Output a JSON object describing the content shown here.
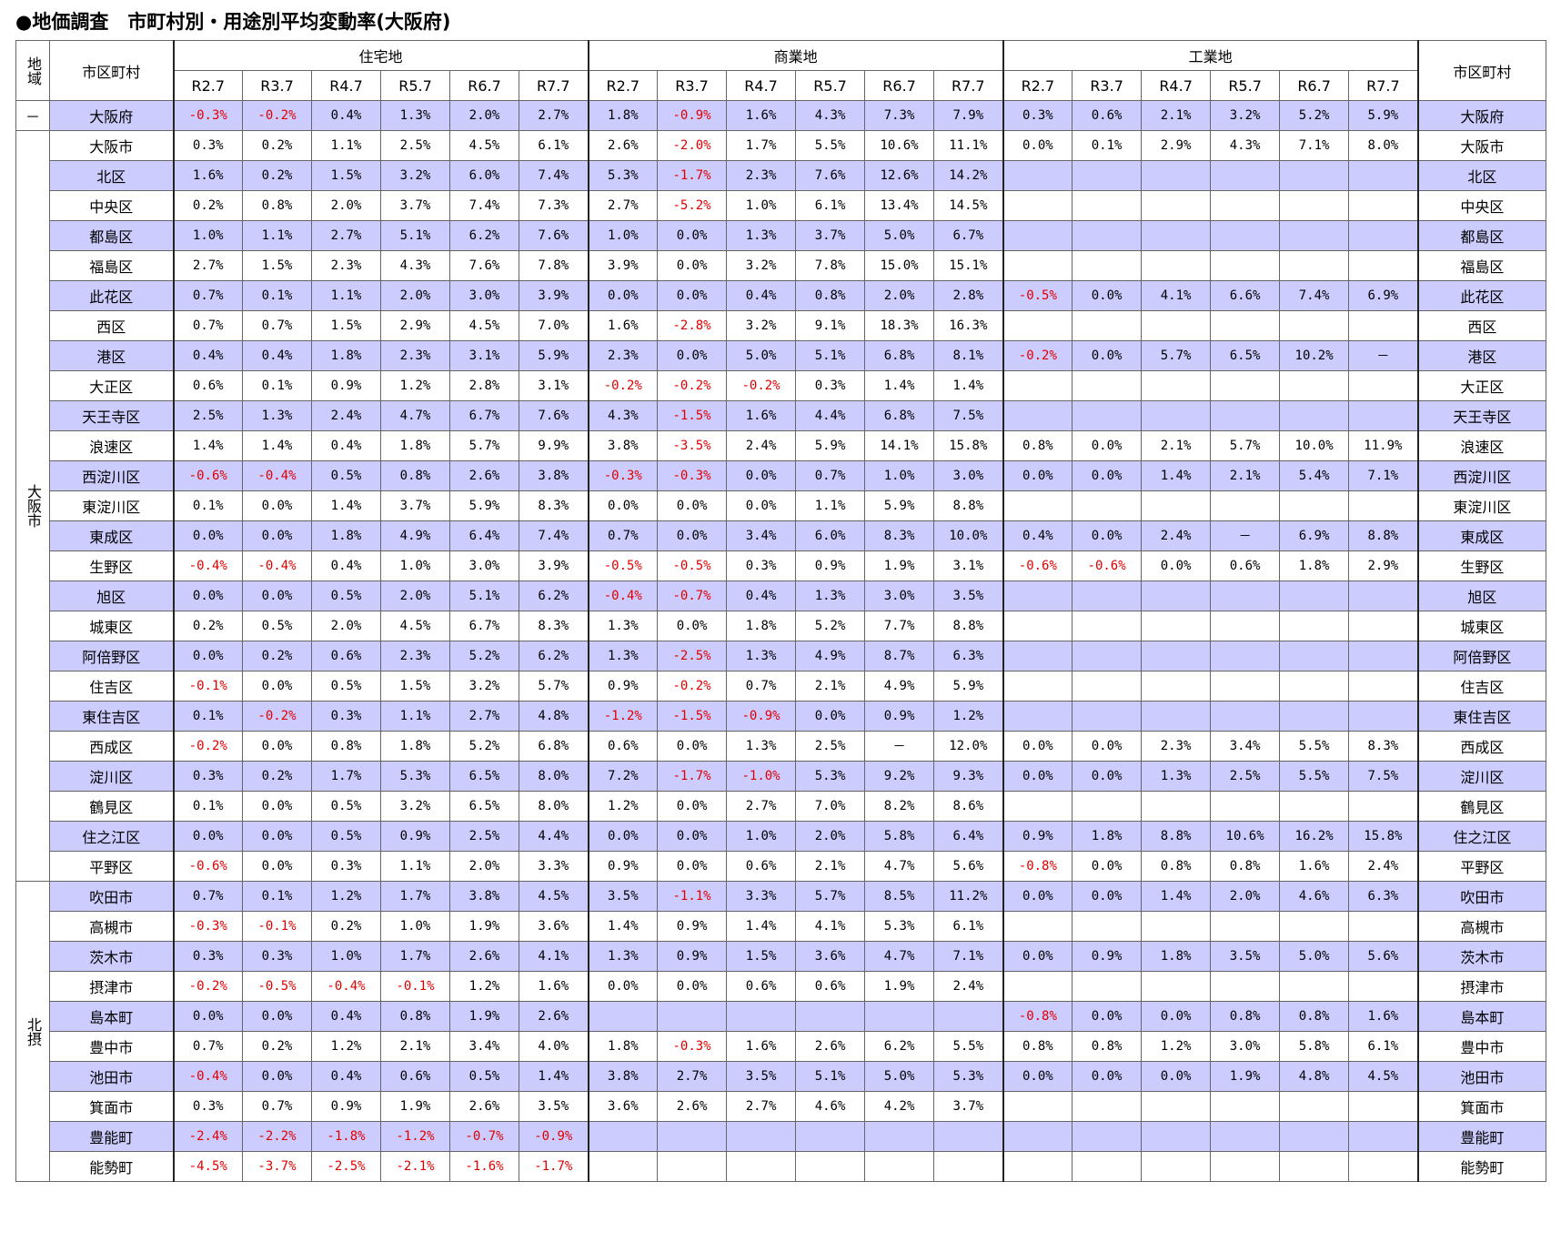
{
  "title": "●地価調査　市町村別・用途別平均変動率(大阪府)",
  "table": {
    "headers": {
      "region": "地域",
      "name": "市区町村",
      "groups": [
        "住宅地",
        "商業地",
        "工業地"
      ],
      "periods": [
        "R2.7",
        "R3.7",
        "R4.7",
        "R5.7",
        "R6.7",
        "R7.7"
      ]
    },
    "regions": [
      {
        "label": "－",
        "rows": [
          {
            "name": "大阪府",
            "shaded": true,
            "values": [
              "-0.3%",
              "-0.2%",
              "0.4%",
              "1.3%",
              "2.0%",
              "2.7%",
              "1.8%",
              "-0.9%",
              "1.6%",
              "4.3%",
              "7.3%",
              "7.9%",
              "0.3%",
              "0.6%",
              "2.1%",
              "3.2%",
              "5.2%",
              "5.9%"
            ]
          }
        ]
      },
      {
        "label": "大阪市",
        "rows": [
          {
            "name": "大阪市",
            "shaded": false,
            "values": [
              "0.3%",
              "0.2%",
              "1.1%",
              "2.5%",
              "4.5%",
              "6.1%",
              "2.6%",
              "-2.0%",
              "1.7%",
              "5.5%",
              "10.6%",
              "11.1%",
              "0.0%",
              "0.1%",
              "2.9%",
              "4.3%",
              "7.1%",
              "8.0%"
            ]
          },
          {
            "name": "北区",
            "shaded": true,
            "values": [
              "1.6%",
              "0.2%",
              "1.5%",
              "3.2%",
              "6.0%",
              "7.4%",
              "5.3%",
              "-1.7%",
              "2.3%",
              "7.6%",
              "12.6%",
              "14.2%",
              null,
              null,
              null,
              null,
              null,
              null
            ]
          },
          {
            "name": "中央区",
            "shaded": false,
            "values": [
              "0.2%",
              "0.8%",
              "2.0%",
              "3.7%",
              "7.4%",
              "7.3%",
              "2.7%",
              "-5.2%",
              "1.0%",
              "6.1%",
              "13.4%",
              "14.5%",
              null,
              null,
              null,
              null,
              null,
              null
            ]
          },
          {
            "name": "都島区",
            "shaded": true,
            "values": [
              "1.0%",
              "1.1%",
              "2.7%",
              "5.1%",
              "6.2%",
              "7.6%",
              "1.0%",
              "0.0%",
              "1.3%",
              "3.7%",
              "5.0%",
              "6.7%",
              null,
              null,
              null,
              null,
              null,
              null
            ]
          },
          {
            "name": "福島区",
            "shaded": false,
            "values": [
              "2.7%",
              "1.5%",
              "2.3%",
              "4.3%",
              "7.6%",
              "7.8%",
              "3.9%",
              "0.0%",
              "3.2%",
              "7.8%",
              "15.0%",
              "15.1%",
              null,
              null,
              null,
              null,
              null,
              null
            ]
          },
          {
            "name": "此花区",
            "shaded": true,
            "values": [
              "0.7%",
              "0.1%",
              "1.1%",
              "2.0%",
              "3.0%",
              "3.9%",
              "0.0%",
              "0.0%",
              "0.4%",
              "0.8%",
              "2.0%",
              "2.8%",
              "-0.5%",
              "0.0%",
              "4.1%",
              "6.6%",
              "7.4%",
              "6.9%"
            ]
          },
          {
            "name": "西区",
            "shaded": false,
            "values": [
              "0.7%",
              "0.7%",
              "1.5%",
              "2.9%",
              "4.5%",
              "7.0%",
              "1.6%",
              "-2.8%",
              "3.2%",
              "9.1%",
              "18.3%",
              "16.3%",
              null,
              null,
              null,
              null,
              null,
              null
            ]
          },
          {
            "name": "港区",
            "shaded": true,
            "values": [
              "0.4%",
              "0.4%",
              "1.8%",
              "2.3%",
              "3.1%",
              "5.9%",
              "2.3%",
              "0.0%",
              "5.0%",
              "5.1%",
              "6.8%",
              "8.1%",
              "-0.2%",
              "0.0%",
              "5.7%",
              "6.5%",
              "10.2%",
              "－"
            ]
          },
          {
            "name": "大正区",
            "shaded": false,
            "values": [
              "0.6%",
              "0.1%",
              "0.9%",
              "1.2%",
              "2.8%",
              "3.1%",
              "-0.2%",
              "-0.2%",
              "-0.2%",
              "0.3%",
              "1.4%",
              "1.4%",
              null,
              null,
              null,
              null,
              null,
              null
            ]
          },
          {
            "name": "天王寺区",
            "shaded": true,
            "values": [
              "2.5%",
              "1.3%",
              "2.4%",
              "4.7%",
              "6.7%",
              "7.6%",
              "4.3%",
              "-1.5%",
              "1.6%",
              "4.4%",
              "6.8%",
              "7.5%",
              null,
              null,
              null,
              null,
              null,
              null
            ]
          },
          {
            "name": "浪速区",
            "shaded": false,
            "values": [
              "1.4%",
              "1.4%",
              "0.4%",
              "1.8%",
              "5.7%",
              "9.9%",
              "3.8%",
              "-3.5%",
              "2.4%",
              "5.9%",
              "14.1%",
              "15.8%",
              "0.8%",
              "0.0%",
              "2.1%",
              "5.7%",
              "10.0%",
              "11.9%"
            ]
          },
          {
            "name": "西淀川区",
            "shaded": true,
            "values": [
              "-0.6%",
              "-0.4%",
              "0.5%",
              "0.8%",
              "2.6%",
              "3.8%",
              "-0.3%",
              "-0.3%",
              "0.0%",
              "0.7%",
              "1.0%",
              "3.0%",
              "0.0%",
              "0.0%",
              "1.4%",
              "2.1%",
              "5.4%",
              "7.1%"
            ]
          },
          {
            "name": "東淀川区",
            "shaded": false,
            "values": [
              "0.1%",
              "0.0%",
              "1.4%",
              "3.7%",
              "5.9%",
              "8.3%",
              "0.0%",
              "0.0%",
              "0.0%",
              "1.1%",
              "5.9%",
              "8.8%",
              null,
              null,
              null,
              null,
              null,
              null
            ]
          },
          {
            "name": "東成区",
            "shaded": true,
            "values": [
              "0.0%",
              "0.0%",
              "1.8%",
              "4.9%",
              "6.4%",
              "7.4%",
              "0.7%",
              "0.0%",
              "3.4%",
              "6.0%",
              "8.3%",
              "10.0%",
              "0.4%",
              "0.0%",
              "2.4%",
              "－",
              "6.9%",
              "8.8%"
            ]
          },
          {
            "name": "生野区",
            "shaded": false,
            "values": [
              "-0.4%",
              "-0.4%",
              "0.4%",
              "1.0%",
              "3.0%",
              "3.9%",
              "-0.5%",
              "-0.5%",
              "0.3%",
              "0.9%",
              "1.9%",
              "3.1%",
              "-0.6%",
              "-0.6%",
              "0.0%",
              "0.6%",
              "1.8%",
              "2.9%"
            ]
          },
          {
            "name": "旭区",
            "shaded": true,
            "values": [
              "0.0%",
              "0.0%",
              "0.5%",
              "2.0%",
              "5.1%",
              "6.2%",
              "-0.4%",
              "-0.7%",
              "0.4%",
              "1.3%",
              "3.0%",
              "3.5%",
              null,
              null,
              null,
              null,
              null,
              null
            ]
          },
          {
            "name": "城東区",
            "shaded": false,
            "values": [
              "0.2%",
              "0.5%",
              "2.0%",
              "4.5%",
              "6.7%",
              "8.3%",
              "1.3%",
              "0.0%",
              "1.8%",
              "5.2%",
              "7.7%",
              "8.8%",
              null,
              null,
              null,
              null,
              null,
              null
            ]
          },
          {
            "name": "阿倍野区",
            "shaded": true,
            "values": [
              "0.0%",
              "0.2%",
              "0.6%",
              "2.3%",
              "5.2%",
              "6.2%",
              "1.3%",
              "-2.5%",
              "1.3%",
              "4.9%",
              "8.7%",
              "6.3%",
              null,
              null,
              null,
              null,
              null,
              null
            ]
          },
          {
            "name": "住吉区",
            "shaded": false,
            "values": [
              "-0.1%",
              "0.0%",
              "0.5%",
              "1.5%",
              "3.2%",
              "5.7%",
              "0.9%",
              "-0.2%",
              "0.7%",
              "2.1%",
              "4.9%",
              "5.9%",
              null,
              null,
              null,
              null,
              null,
              null
            ]
          },
          {
            "name": "東住吉区",
            "shaded": true,
            "values": [
              "0.1%",
              "-0.2%",
              "0.3%",
              "1.1%",
              "2.7%",
              "4.8%",
              "-1.2%",
              "-1.5%",
              "-0.9%",
              "0.0%",
              "0.9%",
              "1.2%",
              null,
              null,
              null,
              null,
              null,
              null
            ]
          },
          {
            "name": "西成区",
            "shaded": false,
            "values": [
              "-0.2%",
              "0.0%",
              "0.8%",
              "1.8%",
              "5.2%",
              "6.8%",
              "0.6%",
              "0.0%",
              "1.3%",
              "2.5%",
              "－",
              "12.0%",
              "0.0%",
              "0.0%",
              "2.3%",
              "3.4%",
              "5.5%",
              "8.3%"
            ]
          },
          {
            "name": "淀川区",
            "shaded": true,
            "values": [
              "0.3%",
              "0.2%",
              "1.7%",
              "5.3%",
              "6.5%",
              "8.0%",
              "7.2%",
              "-1.7%",
              "-1.0%",
              "5.3%",
              "9.2%",
              "9.3%",
              "0.0%",
              "0.0%",
              "1.3%",
              "2.5%",
              "5.5%",
              "7.5%"
            ]
          },
          {
            "name": "鶴見区",
            "shaded": false,
            "values": [
              "0.1%",
              "0.0%",
              "0.5%",
              "3.2%",
              "6.5%",
              "8.0%",
              "1.2%",
              "0.0%",
              "2.7%",
              "7.0%",
              "8.2%",
              "8.6%",
              null,
              null,
              null,
              null,
              null,
              null
            ]
          },
          {
            "name": "住之江区",
            "shaded": true,
            "values": [
              "0.0%",
              "0.0%",
              "0.5%",
              "0.9%",
              "2.5%",
              "4.4%",
              "0.0%",
              "0.0%",
              "1.0%",
              "2.0%",
              "5.8%",
              "6.4%",
              "0.9%",
              "1.8%",
              "8.8%",
              "10.6%",
              "16.2%",
              "15.8%"
            ]
          },
          {
            "name": "平野区",
            "shaded": false,
            "values": [
              "-0.6%",
              "0.0%",
              "0.3%",
              "1.1%",
              "2.0%",
              "3.3%",
              "0.9%",
              "0.0%",
              "0.6%",
              "2.1%",
              "4.7%",
              "5.6%",
              "-0.8%",
              "0.0%",
              "0.8%",
              "0.8%",
              "1.6%",
              "2.4%"
            ]
          }
        ]
      },
      {
        "label": "北摂",
        "rows": [
          {
            "name": "吹田市",
            "shaded": true,
            "values": [
              "0.7%",
              "0.1%",
              "1.2%",
              "1.7%",
              "3.8%",
              "4.5%",
              "3.5%",
              "-1.1%",
              "3.3%",
              "5.7%",
              "8.5%",
              "11.2%",
              "0.0%",
              "0.0%",
              "1.4%",
              "2.0%",
              "4.6%",
              "6.3%"
            ]
          },
          {
            "name": "高槻市",
            "shaded": false,
            "values": [
              "-0.3%",
              "-0.1%",
              "0.2%",
              "1.0%",
              "1.9%",
              "3.6%",
              "1.4%",
              "0.9%",
              "1.4%",
              "4.1%",
              "5.3%",
              "6.1%",
              null,
              null,
              null,
              null,
              null,
              null
            ]
          },
          {
            "name": "茨木市",
            "shaded": true,
            "values": [
              "0.3%",
              "0.3%",
              "1.0%",
              "1.7%",
              "2.6%",
              "4.1%",
              "1.3%",
              "0.9%",
              "1.5%",
              "3.6%",
              "4.7%",
              "7.1%",
              "0.0%",
              "0.9%",
              "1.8%",
              "3.5%",
              "5.0%",
              "5.6%"
            ]
          },
          {
            "name": "摂津市",
            "shaded": false,
            "values": [
              "-0.2%",
              "-0.5%",
              "-0.4%",
              "-0.1%",
              "1.2%",
              "1.6%",
              "0.0%",
              "0.0%",
              "0.6%",
              "0.6%",
              "1.9%",
              "2.4%",
              null,
              null,
              null,
              null,
              null,
              null
            ]
          },
          {
            "name": "島本町",
            "shaded": true,
            "values": [
              "0.0%",
              "0.0%",
              "0.4%",
              "0.8%",
              "1.9%",
              "2.6%",
              null,
              null,
              null,
              null,
              null,
              null,
              "-0.8%",
              "0.0%",
              "0.0%",
              "0.8%",
              "0.8%",
              "1.6%"
            ]
          },
          {
            "name": "豊中市",
            "shaded": false,
            "values": [
              "0.7%",
              "0.2%",
              "1.2%",
              "2.1%",
              "3.4%",
              "4.0%",
              "1.8%",
              "-0.3%",
              "1.6%",
              "2.6%",
              "6.2%",
              "5.5%",
              "0.8%",
              "0.8%",
              "1.2%",
              "3.0%",
              "5.8%",
              "6.1%"
            ]
          },
          {
            "name": "池田市",
            "shaded": true,
            "values": [
              "-0.4%",
              "0.0%",
              "0.4%",
              "0.6%",
              "0.5%",
              "1.4%",
              "3.8%",
              "2.7%",
              "3.5%",
              "5.1%",
              "5.0%",
              "5.3%",
              "0.0%",
              "0.0%",
              "0.0%",
              "1.9%",
              "4.8%",
              "4.5%"
            ]
          },
          {
            "name": "箕面市",
            "shaded": false,
            "values": [
              "0.3%",
              "0.7%",
              "0.9%",
              "1.9%",
              "2.6%",
              "3.5%",
              "3.6%",
              "2.6%",
              "2.7%",
              "4.6%",
              "4.2%",
              "3.7%",
              null,
              null,
              null,
              null,
              null,
              null
            ]
          },
          {
            "name": "豊能町",
            "shaded": true,
            "values": [
              "-2.4%",
              "-2.2%",
              "-1.8%",
              "-1.2%",
              "-0.7%",
              "-0.9%",
              null,
              null,
              null,
              null,
              null,
              null,
              null,
              null,
              null,
              null,
              null,
              null
            ]
          },
          {
            "name": "能勢町",
            "shaded": false,
            "values": [
              "-4.5%",
              "-3.7%",
              "-2.5%",
              "-2.1%",
              "-1.6%",
              "-1.7%",
              null,
              null,
              null,
              null,
              null,
              null,
              null,
              null,
              null,
              null,
              null,
              null
            ]
          }
        ]
      }
    ]
  }
}
